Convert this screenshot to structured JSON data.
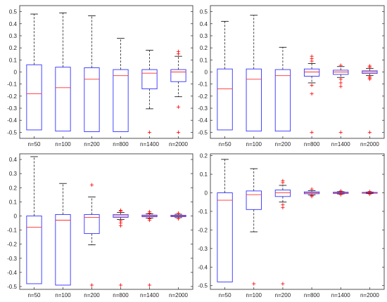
{
  "colors": {
    "box": "#3232ff",
    "median": "#ff3030",
    "outlier": "#ff0000",
    "whisker": "#000000",
    "axes": "#262626"
  },
  "chart_data": [
    {
      "type": "box",
      "categories": [
        "n=50",
        "n=100",
        "n=200",
        "n=800",
        "n=1400",
        "n=2000"
      ],
      "ylim": [
        -0.55,
        0.55
      ],
      "yticks": [
        -0.5,
        -0.4,
        -0.3,
        -0.2,
        -0.1,
        0,
        0.1,
        0.2,
        0.3,
        0.4,
        0.5
      ],
      "ytick_labels": [
        "-0.5",
        "-0.4",
        "-0.3",
        "-0.2",
        "-0.1",
        "0",
        "0.1",
        "0.2",
        "0.3",
        "0.4",
        "0.5"
      ],
      "boxes": [
        {
          "whisker_low": -0.48,
          "q1": -0.48,
          "median": -0.18,
          "q3": 0.06,
          "whisker_high": 0.48,
          "outliers": []
        },
        {
          "whisker_low": -0.49,
          "q1": -0.49,
          "median": -0.13,
          "q3": 0.04,
          "whisker_high": 0.49,
          "outliers": []
        },
        {
          "whisker_low": -0.495,
          "q1": -0.495,
          "median": -0.06,
          "q3": 0.035,
          "whisker_high": 0.465,
          "outliers": []
        },
        {
          "whisker_low": -0.495,
          "q1": -0.495,
          "median": -0.03,
          "q3": 0.02,
          "whisker_high": 0.28,
          "outliers": []
        },
        {
          "whisker_low": -0.305,
          "q1": -0.14,
          "median": -0.01,
          "q3": 0.02,
          "whisker_high": 0.18,
          "outliers": [
            -0.5
          ]
        },
        {
          "whisker_low": -0.205,
          "q1": -0.08,
          "median": 0.0,
          "q3": 0.02,
          "whisker_high": 0.13,
          "outliers": [
            0.17,
            0.15,
            -0.29,
            -0.5
          ]
        }
      ]
    },
    {
      "type": "box",
      "categories": [
        "n=50",
        "n=100",
        "n=200",
        "n=800",
        "n=1400",
        "n=2000"
      ],
      "ylim": [
        -0.55,
        0.55
      ],
      "yticks": [
        -0.5,
        -0.4,
        -0.3,
        -0.2,
        -0.1,
        0,
        0.1,
        0.2,
        0.3,
        0.4,
        0.5
      ],
      "ytick_labels": [
        "-0.5",
        "-0.4",
        "-0.3",
        "-0.2",
        "-0.1",
        "0",
        "0.1",
        "0.2",
        "0.3",
        "0.4",
        "0.5"
      ],
      "boxes": [
        {
          "whisker_low": -0.48,
          "q1": -0.48,
          "median": -0.14,
          "q3": 0.025,
          "whisker_high": 0.42,
          "outliers": []
        },
        {
          "whisker_low": -0.49,
          "q1": -0.49,
          "median": -0.06,
          "q3": 0.025,
          "whisker_high": 0.47,
          "outliers": []
        },
        {
          "whisker_low": -0.49,
          "q1": -0.49,
          "median": -0.03,
          "q3": 0.02,
          "whisker_high": 0.205,
          "outliers": []
        },
        {
          "whisker_low": -0.09,
          "q1": -0.035,
          "median": 0.0,
          "q3": 0.025,
          "whisker_high": 0.07,
          "outliers": [
            0.13,
            0.11,
            0.09,
            -0.11,
            -0.18,
            -0.5
          ]
        },
        {
          "whisker_low": -0.045,
          "q1": -0.02,
          "median": 0.0,
          "q3": 0.015,
          "whisker_high": 0.045,
          "outliers": [
            0.055,
            -0.06,
            -0.09,
            -0.12,
            -0.5
          ]
        },
        {
          "whisker_low": -0.03,
          "q1": -0.012,
          "median": 0.0,
          "q3": 0.01,
          "whisker_high": 0.03,
          "outliers": [
            0.05,
            0.04,
            -0.04,
            -0.05,
            -0.06,
            -0.5
          ]
        }
      ]
    },
    {
      "type": "box",
      "categories": [
        "n=50",
        "n=100",
        "n=200",
        "n=800",
        "n=1400",
        "n=2000"
      ],
      "ylim": [
        -0.52,
        0.44
      ],
      "yticks": [
        -0.5,
        -0.4,
        -0.3,
        -0.2,
        -0.1,
        0,
        0.1,
        0.2,
        0.3,
        0.4
      ],
      "ytick_labels": [
        "-0.5",
        "-0.4",
        "-0.3",
        "-0.2",
        "-0.1",
        "0",
        "0.1",
        "0.2",
        "0.3",
        "0.4"
      ],
      "boxes": [
        {
          "whisker_low": -0.48,
          "q1": -0.48,
          "median": -0.08,
          "q3": 0.0,
          "whisker_high": 0.42,
          "outliers": []
        },
        {
          "whisker_low": -0.49,
          "q1": -0.49,
          "median": -0.03,
          "q3": 0.01,
          "whisker_high": 0.23,
          "outliers": []
        },
        {
          "whisker_low": -0.205,
          "q1": -0.125,
          "median": -0.01,
          "q3": 0.01,
          "whisker_high": 0.135,
          "outliers": [
            0.22,
            -0.49
          ]
        },
        {
          "whisker_low": -0.025,
          "q1": -0.01,
          "median": 0.0,
          "q3": 0.01,
          "whisker_high": 0.025,
          "outliers": [
            0.04,
            0.035,
            -0.035,
            -0.05,
            -0.07,
            -0.49
          ]
        },
        {
          "whisker_low": -0.015,
          "q1": -0.006,
          "median": 0.0,
          "q3": 0.006,
          "whisker_high": 0.015,
          "outliers": [
            0.03,
            0.02,
            -0.02,
            -0.03,
            -0.49
          ]
        },
        {
          "whisker_low": -0.012,
          "q1": -0.005,
          "median": 0.0,
          "q3": 0.005,
          "whisker_high": 0.012,
          "outliers": [
            0.02,
            -0.02
          ]
        }
      ]
    },
    {
      "type": "box",
      "categories": [
        "n=50",
        "n=100",
        "n=200",
        "n=800",
        "n=1400",
        "n=2000"
      ],
      "ylim": [
        -0.52,
        0.21
      ],
      "yticks": [
        -0.5,
        -0.4,
        -0.3,
        -0.2,
        -0.1,
        0,
        0.1,
        0.2
      ],
      "ytick_labels": [
        "-0.5",
        "-0.4",
        "-0.3",
        "-0.2",
        "-0.1",
        "0",
        "0.1",
        "0.2"
      ],
      "boxes": [
        {
          "whisker_low": -0.48,
          "q1": -0.48,
          "median": -0.04,
          "q3": 0.0,
          "whisker_high": 0.18,
          "outliers": []
        },
        {
          "whisker_low": -0.21,
          "q1": -0.09,
          "median": -0.01,
          "q3": 0.01,
          "whisker_high": 0.13,
          "outliers": [
            -0.49
          ]
        },
        {
          "whisker_low": -0.05,
          "q1": -0.02,
          "median": 0.0,
          "q3": 0.015,
          "whisker_high": 0.04,
          "outliers": [
            0.065,
            0.055,
            -0.065,
            -0.08,
            -0.49
          ]
        },
        {
          "whisker_low": -0.012,
          "q1": -0.005,
          "median": 0.0,
          "q3": 0.005,
          "whisker_high": 0.012,
          "outliers": [
            0.02,
            -0.015,
            -0.02
          ]
        },
        {
          "whisker_low": -0.006,
          "q1": -0.003,
          "median": 0.0,
          "q3": 0.003,
          "whisker_high": 0.006,
          "outliers": [
            0.01,
            -0.01
          ]
        },
        {
          "whisker_low": -0.004,
          "q1": -0.002,
          "median": 0.0,
          "q3": 0.002,
          "whisker_high": 0.004,
          "outliers": [
            0.007,
            -0.007
          ]
        }
      ]
    }
  ]
}
